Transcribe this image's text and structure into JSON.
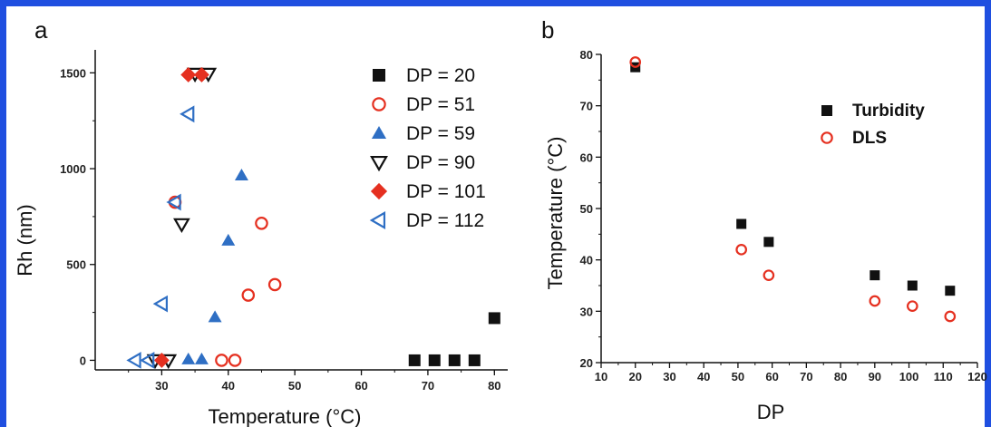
{
  "colors": {
    "frame": "#1f4fe0",
    "black": "#111111",
    "red": "#e53020",
    "blue": "#2f6fc4"
  },
  "chart_data": [
    {
      "panel_label": "a",
      "type": "scatter",
      "xlabel": "Temperature (°C)",
      "ylabel": "Rh (nm)",
      "xlim": [
        20,
        82
      ],
      "ylim": [
        -50,
        1620
      ],
      "xticks": [
        30,
        40,
        50,
        60,
        70,
        80
      ],
      "yticks": [
        0,
        500,
        1000,
        1500
      ],
      "legend_position": "top-right",
      "series": [
        {
          "name": "DP = 20",
          "marker": "square",
          "color": "#111111",
          "filled": true,
          "points": [
            [
              68,
              0
            ],
            [
              71,
              0
            ],
            [
              74,
              0
            ],
            [
              77,
              0
            ],
            [
              80,
              220
            ]
          ]
        },
        {
          "name": "DP = 51",
          "marker": "circle",
          "color": "#e53020",
          "filled": false,
          "points": [
            [
              39,
              0
            ],
            [
              41,
              0
            ],
            [
              43,
              340
            ],
            [
              45,
              715
            ],
            [
              47,
              395
            ],
            [
              32,
              825
            ]
          ]
        },
        {
          "name": "DP = 59",
          "marker": "triangle-up",
          "color": "#2f6fc4",
          "filled": true,
          "points": [
            [
              34,
              5
            ],
            [
              36,
              5
            ],
            [
              38,
              225
            ],
            [
              40,
              625
            ],
            [
              42,
              965
            ]
          ]
        },
        {
          "name": "DP = 90",
          "marker": "triangle-down",
          "color": "#111111",
          "filled": false,
          "points": [
            [
              29,
              0
            ],
            [
              31,
              0
            ],
            [
              33,
              710
            ],
            [
              35,
              1495
            ],
            [
              37,
              1495
            ]
          ]
        },
        {
          "name": "DP = 101",
          "marker": "diamond",
          "color": "#e53020",
          "filled": true,
          "points": [
            [
              30,
              0
            ],
            [
              34,
              1490
            ],
            [
              36,
              1490
            ]
          ]
        },
        {
          "name": "DP = 112",
          "marker": "triangle-left",
          "color": "#2f6fc4",
          "filled": false,
          "points": [
            [
              26,
              0
            ],
            [
              28,
              0
            ],
            [
              30,
              295
            ],
            [
              32,
              825
            ],
            [
              34,
              1285
            ]
          ]
        }
      ]
    },
    {
      "panel_label": "b",
      "type": "scatter",
      "xlabel": "DP",
      "ylabel": "Temperature (°C)",
      "xlim": [
        10,
        120
      ],
      "ylim": [
        20,
        80
      ],
      "xticks": [
        10,
        20,
        30,
        40,
        50,
        60,
        70,
        80,
        90,
        100,
        110,
        120
      ],
      "yticks": [
        20,
        30,
        40,
        50,
        60,
        70,
        80
      ],
      "legend_position": "top-right",
      "series": [
        {
          "name": "Turbidity",
          "marker": "square",
          "color": "#111111",
          "filled": true,
          "x": [
            20,
            51,
            59,
            90,
            101,
            112
          ],
          "y": [
            77.5,
            47,
            43.5,
            37,
            35,
            34
          ]
        },
        {
          "name": "DLS",
          "marker": "circle",
          "color": "#e53020",
          "filled": false,
          "x": [
            20,
            51,
            59,
            90,
            101,
            112
          ],
          "y": [
            78.5,
            42,
            37,
            32,
            31,
            29
          ]
        }
      ]
    }
  ]
}
